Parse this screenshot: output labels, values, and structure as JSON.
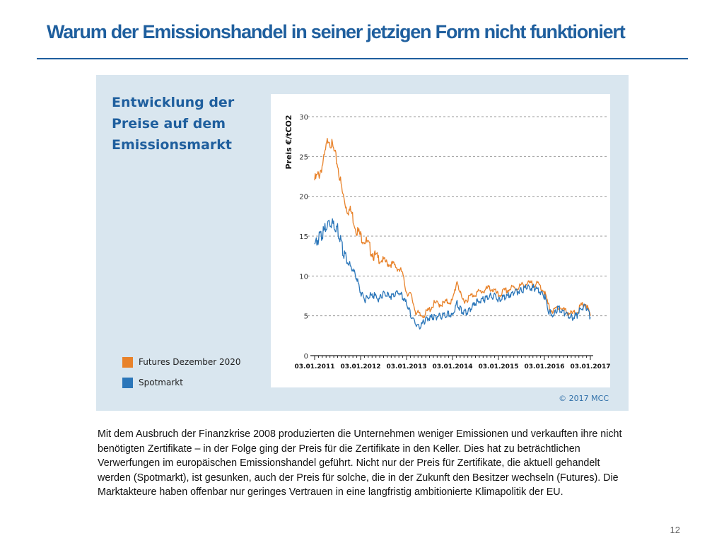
{
  "slide": {
    "title": "Warum der Emissionshandel in seiner jetzigen Form nicht funktioniert",
    "body_text": "Mit dem Ausbruch der Finanzkrise 2008 produzierten die Unternehmen weniger Emissionen und verkauften ihre nicht benötigten Zertifikate – in der Folge ging der Preis für die Zertifikate in den Keller. Dies hat zu beträchtlichen Verwerfungen im europäischen Emissionshandel geführt. Nicht nur der Preis für Zertifikate, die aktuell gehandelt werden (Spotmarkt), ist gesunken, auch der Preis für solche, die in der Zukunft den Besitzer wechseln (Futures). Die Marktakteure haben offenbar nur geringes Vertrauen in eine langfristig ambitionierte Klimapolitik der EU.",
    "page_number": "12"
  },
  "figure": {
    "heading": "Entwicklung der Preise auf dem Emissionsmarkt",
    "copyright": "© 2017 MCC"
  },
  "chart_data": {
    "type": "line",
    "title": "Entwicklung der Preise auf dem Emissionsmarkt",
    "ylabel": "Preis €/tCO2",
    "xlabel": "",
    "ylim": [
      0,
      30
    ],
    "yticks": [
      "0",
      "5",
      "10",
      "15",
      "20",
      "25",
      "30"
    ],
    "xtick_labels": [
      "03.01.2011",
      "03.01.2012",
      "03.01.2013",
      "03.01.2014",
      "03.01.2015",
      "03.01.2016",
      "03.01.2017"
    ],
    "grid": "horizontal dashed",
    "legend_position": "bottom-left",
    "x": [
      2011.0,
      2011.1,
      2011.2,
      2011.3,
      2011.4,
      2011.5,
      2011.6,
      2011.7,
      2011.8,
      2011.9,
      2012.0,
      2012.1,
      2012.2,
      2012.3,
      2012.4,
      2012.5,
      2012.6,
      2012.7,
      2012.8,
      2012.9,
      2013.0,
      2013.1,
      2013.2,
      2013.3,
      2013.4,
      2013.5,
      2013.6,
      2013.7,
      2013.8,
      2013.9,
      2014.0,
      2014.1,
      2014.2,
      2014.3,
      2014.4,
      2014.5,
      2014.6,
      2014.7,
      2014.8,
      2014.9,
      2015.0,
      2015.1,
      2015.2,
      2015.3,
      2015.4,
      2015.5,
      2015.6,
      2015.7,
      2015.8,
      2015.9,
      2016.0,
      2016.1,
      2016.2,
      2016.3,
      2016.4,
      2016.5,
      2016.6,
      2016.7,
      2016.8,
      2016.9,
      2017.0
    ],
    "series": [
      {
        "name": "Futures Dezember 2020",
        "color": "#e8822a",
        "values": [
          22.0,
          22.8,
          24.5,
          27.5,
          26.0,
          24.0,
          20.5,
          18.5,
          18.0,
          16.0,
          15.0,
          14.5,
          13.5,
          12.5,
          12.0,
          12.0,
          11.5,
          11.5,
          11.0,
          10.5,
          8.0,
          7.5,
          5.5,
          5.0,
          5.2,
          5.8,
          6.5,
          6.5,
          6.5,
          6.8,
          6.8,
          9.5,
          7.0,
          7.0,
          7.5,
          7.8,
          8.0,
          8.2,
          8.5,
          8.2,
          7.5,
          8.0,
          8.2,
          8.5,
          8.5,
          8.8,
          9.0,
          9.0,
          9.0,
          8.8,
          8.0,
          6.0,
          5.5,
          6.2,
          5.8,
          5.5,
          5.2,
          5.5,
          6.2,
          6.5,
          5.0
        ]
      },
      {
        "name": "Spotmarkt",
        "color": "#2b76b9",
        "values": [
          14.0,
          14.8,
          15.5,
          16.8,
          16.5,
          16.0,
          13.5,
          12.0,
          11.0,
          10.0,
          8.0,
          7.0,
          7.5,
          7.5,
          7.0,
          7.8,
          7.5,
          7.5,
          8.0,
          7.5,
          6.5,
          5.0,
          4.0,
          3.5,
          4.5,
          4.8,
          4.8,
          5.0,
          5.0,
          5.2,
          5.0,
          6.5,
          5.5,
          5.5,
          6.0,
          6.5,
          7.0,
          7.0,
          7.5,
          7.5,
          7.0,
          7.2,
          7.5,
          7.8,
          8.0,
          8.2,
          8.5,
          8.5,
          8.5,
          8.2,
          7.5,
          5.5,
          5.0,
          6.0,
          5.5,
          5.2,
          4.8,
          5.0,
          6.0,
          6.2,
          4.8
        ]
      }
    ]
  }
}
